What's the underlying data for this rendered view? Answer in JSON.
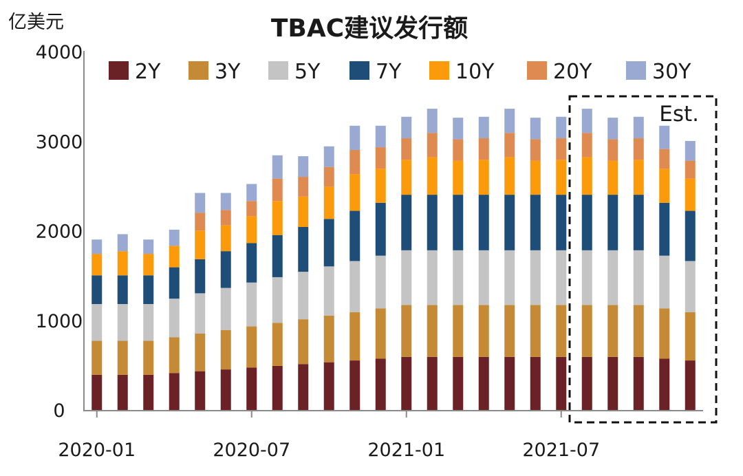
{
  "chart_data": {
    "type": "bar",
    "stacked": true,
    "title": "TBAC建议发行额",
    "ylabel": "亿美元",
    "ylim": [
      0,
      4000
    ],
    "yticks": [
      "0",
      "1000",
      "2000",
      "3000",
      "4000"
    ],
    "xticks": [
      {
        "index": 0,
        "label": "2020-01"
      },
      {
        "index": 6,
        "label": "2020-07"
      },
      {
        "index": 12,
        "label": "2021-01"
      },
      {
        "index": 18,
        "label": "2021-07"
      }
    ],
    "categories": [
      "2020-01",
      "2020-02",
      "2020-03",
      "2020-04",
      "2020-05",
      "2020-06",
      "2020-07",
      "2020-08",
      "2020-09",
      "2020-10",
      "2020-11",
      "2020-12",
      "2021-01",
      "2021-02",
      "2021-03",
      "2021-04",
      "2021-05",
      "2021-06",
      "2021-07",
      "2021-08",
      "2021-09",
      "2021-10",
      "2021-11",
      "2021-12"
    ],
    "annotation": "Est.",
    "estimate_start_index": 19,
    "series": [
      {
        "name": "2Y",
        "color": "#6b2226",
        "values": [
          400,
          400,
          400,
          420,
          440,
          460,
          480,
          500,
          520,
          540,
          560,
          580,
          600,
          600,
          600,
          600,
          600,
          600,
          600,
          600,
          600,
          600,
          580,
          560
        ]
      },
      {
        "name": "3Y",
        "color": "#c58a36",
        "values": [
          380,
          380,
          380,
          400,
          420,
          440,
          460,
          480,
          500,
          520,
          540,
          560,
          580,
          580,
          580,
          580,
          580,
          580,
          580,
          580,
          580,
          580,
          560,
          540
        ]
      },
      {
        "name": "5Y",
        "color": "#c4c4c4",
        "values": [
          410,
          410,
          410,
          430,
          450,
          470,
          490,
          510,
          530,
          550,
          570,
          590,
          610,
          610,
          610,
          610,
          610,
          610,
          610,
          610,
          610,
          610,
          590,
          570
        ]
      },
      {
        "name": "7Y",
        "color": "#1e4d78",
        "values": [
          320,
          320,
          320,
          350,
          380,
          410,
          440,
          470,
          500,
          530,
          560,
          590,
          620,
          620,
          620,
          620,
          620,
          620,
          620,
          620,
          620,
          620,
          590,
          560
        ]
      },
      {
        "name": "10Y",
        "color": "#fb9a0a",
        "values": [
          240,
          270,
          240,
          240,
          320,
          290,
          300,
          380,
          340,
          360,
          410,
          380,
          390,
          420,
          380,
          390,
          420,
          380,
          390,
          420,
          380,
          390,
          380,
          360
        ]
      },
      {
        "name": "20Y",
        "color": "#de8a50",
        "values": [
          0,
          0,
          0,
          0,
          200,
          170,
          170,
          250,
          220,
          220,
          270,
          240,
          240,
          270,
          240,
          240,
          270,
          240,
          240,
          270,
          240,
          240,
          220,
          200
        ]
      },
      {
        "name": "30Y",
        "color": "#99a9d2",
        "values": [
          160,
          190,
          160,
          180,
          220,
          190,
          190,
          260,
          230,
          230,
          270,
          240,
          240,
          270,
          240,
          240,
          270,
          240,
          240,
          270,
          240,
          240,
          260,
          220
        ]
      }
    ]
  }
}
